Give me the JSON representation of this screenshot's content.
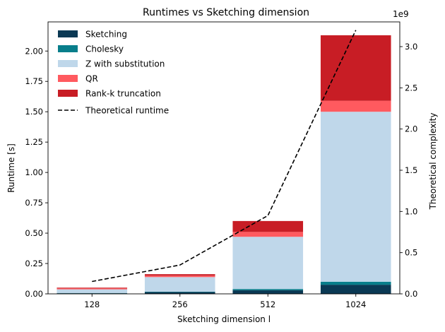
{
  "chart_data": {
    "type": "bar",
    "title": "Runtimes vs Sketching dimension",
    "xlabel": "Sketching dimension l",
    "ylabel": "Runtime [s]",
    "y2label": "Theoretical complexity",
    "y2_multiplier": "1e9",
    "categories": [
      "128",
      "256",
      "512",
      "1024"
    ],
    "ylim": [
      0,
      2.24
    ],
    "y2lim": [
      0,
      3.3
    ],
    "yticks": [
      "0.00",
      "0.25",
      "0.50",
      "0.75",
      "1.00",
      "1.25",
      "1.50",
      "1.75",
      "2.00"
    ],
    "y2ticks": [
      "0.0",
      "0.5",
      "1.0",
      "1.5",
      "2.0",
      "2.5",
      "3.0"
    ],
    "legend_position": "top-left",
    "series": [
      {
        "name": "Sketching",
        "color": "#0b3954",
        "values": [
          0.005,
          0.015,
          0.03,
          0.075
        ]
      },
      {
        "name": "Cholesky",
        "color": "#087e8b",
        "values": [
          0.002,
          0.003,
          0.01,
          0.025
        ]
      },
      {
        "name": "Z with substitution",
        "color": "#bfd7ea",
        "values": [
          0.03,
          0.12,
          0.43,
          1.4
        ]
      },
      {
        "name": "QR",
        "color": "#ff5a5f",
        "values": [
          0.008,
          0.012,
          0.04,
          0.09
        ]
      },
      {
        "name": "Rank-k truncation",
        "color": "#c81d25",
        "values": [
          0.006,
          0.012,
          0.09,
          0.54
        ]
      }
    ],
    "line": {
      "name": "Theoretical runtime",
      "color": "#000000",
      "style": "dashed",
      "axis": "right",
      "values": [
        0.15,
        0.35,
        0.95,
        3.2
      ]
    }
  }
}
